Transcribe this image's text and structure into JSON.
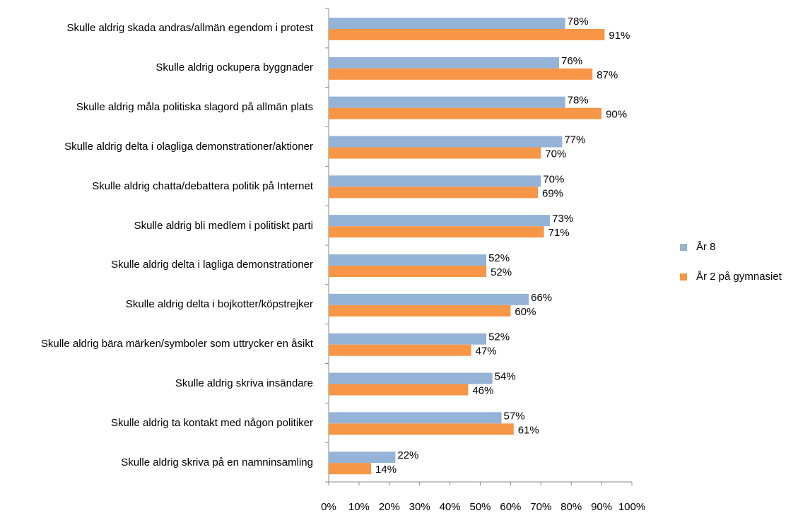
{
  "chart_data": {
    "type": "hbar",
    "categories": [
      "Skulle aldrig skada andras/allmän egendom i protest",
      "Skulle aldrig ockupera byggnader",
      "Skulle aldrig måla politiska slagord på allmän plats",
      "Skulle aldrig delta i olagliga demonstrationer/aktioner",
      "Skulle aldrig chatta/debattera politik på Internet",
      "Skulle aldrig bli medlem i politiskt parti",
      "Skulle aldrig delta i lagliga demonstrationer",
      "Skulle aldrig delta i bojkotter/köpstrejker",
      "Skulle aldrig bära märken/symboler som uttrycker en åsikt",
      "Skulle aldrig skriva insändare",
      "Skulle aldrig ta kontakt med någon politiker",
      "Skulle aldrig skriva på en namninsamling"
    ],
    "series": [
      {
        "name": "År 8",
        "color": "#95b3d7",
        "values": [
          78,
          76,
          78,
          77,
          70,
          73,
          52,
          66,
          52,
          54,
          57,
          22
        ],
        "value_labels": [
          "78%",
          "76%",
          "78%",
          "77%",
          "70%",
          "73%",
          "52%",
          "66%",
          "52%",
          "54%",
          "57%",
          "22%"
        ]
      },
      {
        "name": "År 2 på gymnasiet",
        "color": "#f79646",
        "values": [
          91,
          87,
          90,
          70,
          69,
          71,
          52,
          60,
          47,
          46,
          61,
          14
        ],
        "value_labels": [
          "91%",
          "87%",
          "90%",
          "70%",
          "69%",
          "71%",
          "52%",
          "60%",
          "47%",
          "46%",
          "61%",
          "14%"
        ]
      }
    ],
    "xlim": [
      0,
      100
    ],
    "xticks": [
      {
        "value": 0,
        "label": "0%"
      },
      {
        "value": 10,
        "label": "10%"
      },
      {
        "value": 20,
        "label": "20%"
      },
      {
        "value": 30,
        "label": "30%"
      },
      {
        "value": 40,
        "label": "40%"
      },
      {
        "value": 50,
        "label": "50%"
      },
      {
        "value": 60,
        "label": "60%"
      },
      {
        "value": 70,
        "label": "70%"
      },
      {
        "value": 80,
        "label": "80%"
      },
      {
        "value": 90,
        "label": "90%"
      },
      {
        "value": 100,
        "label": "100%"
      }
    ],
    "legend": "right"
  }
}
